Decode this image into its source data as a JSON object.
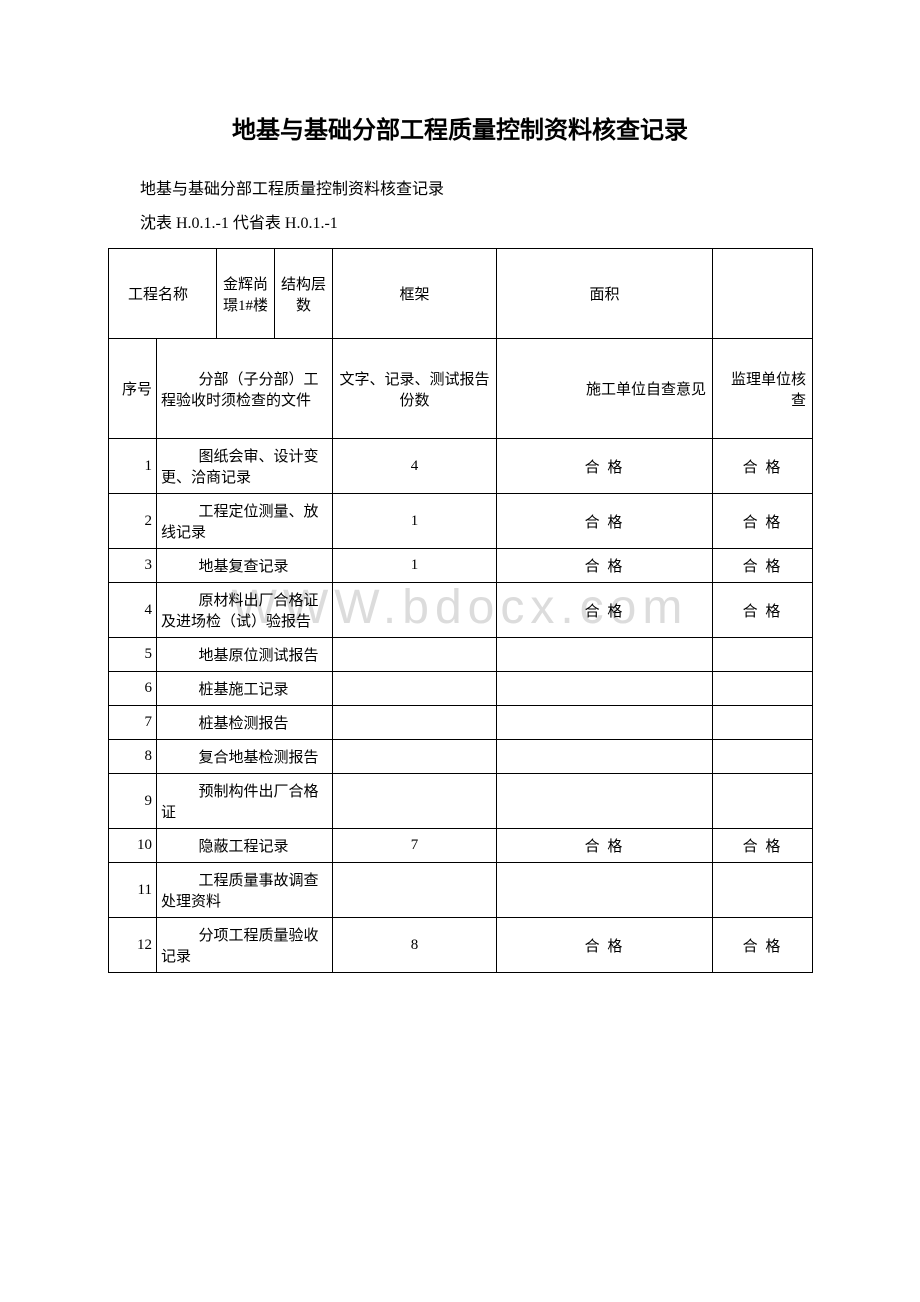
{
  "page": {
    "title": "地基与基础分部工程质量控制资料核查记录",
    "subtitle": "地基与基础分部工程质量控制资料核查记录",
    "form_code": "沈表 H.0.1.-1 代省表 H.0.1.-1",
    "watermark": "WWW.bdocx.com"
  },
  "header_row": {
    "label1": "工程名称",
    "value1": "金辉尚璟1#楼",
    "label2": "结构层数",
    "value2": "框架",
    "label3": "面积",
    "value3": ""
  },
  "columns": {
    "seq": "序号",
    "name": "分部（子分部）工程验收时须检查的文件",
    "count": "文字、记录、测试报告份数",
    "self_check": "施工单位自查意见",
    "super_check": "监理单位核查"
  },
  "rows": [
    {
      "seq": "1",
      "name": "图纸会审、设计变更、洽商记录",
      "count": "4",
      "self": "合 格",
      "super": "合 格"
    },
    {
      "seq": "2",
      "name": "工程定位测量、放线记录",
      "count": "1",
      "self": "合 格",
      "super": "合 格"
    },
    {
      "seq": "3",
      "name": "地基复查记录",
      "count": "1",
      "self": "合 格",
      "super": "合 格"
    },
    {
      "seq": "4",
      "name": "原材料出厂合格证及进场检（试）验报告",
      "count": "",
      "self": "合 格",
      "super": "合 格"
    },
    {
      "seq": "5",
      "name": "地基原位测试报告",
      "count": "",
      "self": "",
      "super": ""
    },
    {
      "seq": "6",
      "name": "桩基施工记录",
      "count": "",
      "self": "",
      "super": ""
    },
    {
      "seq": "7",
      "name": "桩基检测报告",
      "count": "",
      "self": "",
      "super": ""
    },
    {
      "seq": "8",
      "name": "复合地基检测报告",
      "count": "",
      "self": "",
      "super": ""
    },
    {
      "seq": "9",
      "name": "预制构件出厂合格证",
      "count": "",
      "self": "",
      "super": ""
    },
    {
      "seq": "10",
      "name": "隐蔽工程记录",
      "count": "7",
      "self": "合 格",
      "super": "合 格"
    },
    {
      "seq": "11",
      "name": "工程质量事故调查处理资料",
      "count": "",
      "self": "",
      "super": ""
    },
    {
      "seq": "12",
      "name": "分项工程质量验收记录",
      "count": "8",
      "self": "合 格",
      "super": "合 格"
    }
  ]
}
